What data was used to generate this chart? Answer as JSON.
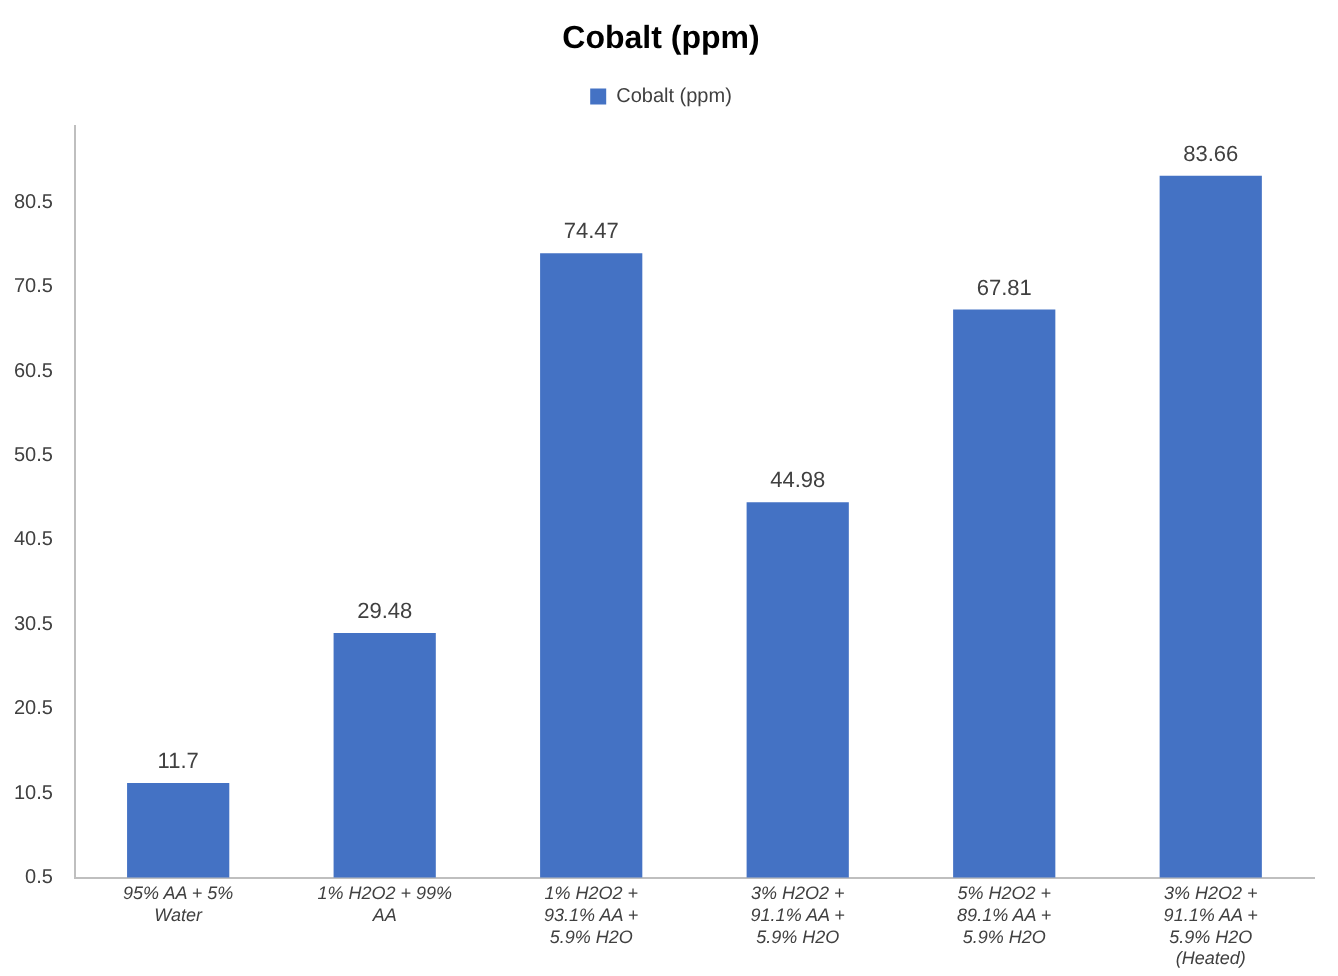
{
  "chart_data": {
    "type": "bar",
    "title": "Cobalt (ppm)",
    "categories": [
      "95% AA + 5% Water",
      "1% H2O2 + 99% AA",
      "1% H2O2 + 93.1% AA + 5.9% H2O",
      "3% H2O2 + 91.1% AA + 5.9% H2O",
      "5% H2O2 + 89.1% AA + 5.9% H2O",
      "3% H2O2 + 91.1% AA + 5.9% H2O (Heated)"
    ],
    "series": [
      {
        "name": "Cobalt (ppm)",
        "color": "#4472c4",
        "values": [
          11.7,
          29.48,
          74.47,
          44.98,
          67.81,
          83.66
        ]
      }
    ],
    "ylim": [
      0.5,
      89.5
    ],
    "yticks": [
      0.5,
      10.5,
      20.5,
      30.5,
      40.5,
      50.5,
      60.5,
      70.5,
      80.5
    ],
    "grid": false,
    "legend": "top",
    "data_labels": true
  }
}
